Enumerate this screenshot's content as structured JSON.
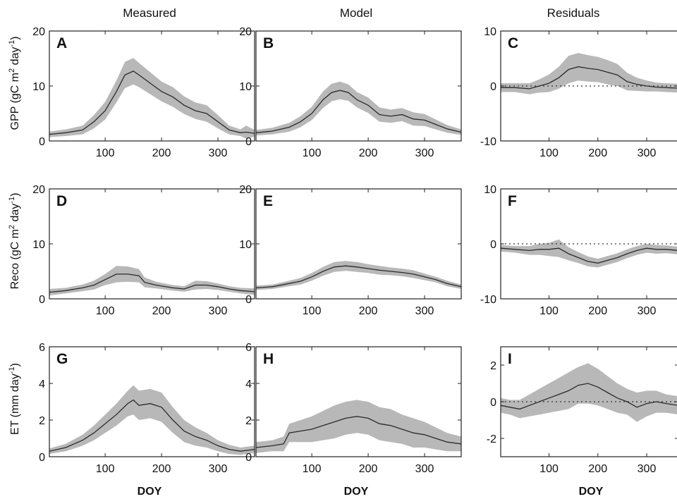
{
  "chart_data": {
    "type": "area",
    "col_titles": [
      "Measured",
      "Model",
      "Residuals"
    ],
    "row_ylabels": [
      {
        "base": "GPP (gC m",
        "sup1": "2",
        "mid": " day",
        "sup2": "-1",
        "end": ")"
      },
      {
        "base": "Reco (gC m",
        "sup1": "2",
        "mid": " day",
        "sup2": "-1",
        "end": ")"
      },
      {
        "base": "ET (mm day",
        "sup1": "",
        "mid": "",
        "sup2": "-1",
        "end": ")"
      }
    ],
    "xlabel": "DOY",
    "xlim": [
      1,
      365
    ],
    "xticks": [
      100,
      200,
      300
    ],
    "style": {
      "band_color": "#b8b8b8",
      "line_color": "#2a2a2a",
      "zero_line": "dotted"
    },
    "panels": [
      {
        "label": "A",
        "ylim": [
          0,
          20
        ],
        "yticks": [
          0,
          10,
          20
        ],
        "zero_line": false,
        "x": [
          1,
          30,
          60,
          80,
          100,
          120,
          135,
          150,
          160,
          180,
          200,
          220,
          240,
          260,
          280,
          300,
          320,
          340,
          350,
          365
        ],
        "y": [
          1.2,
          1.5,
          2.0,
          3.5,
          5.5,
          9.0,
          12.0,
          12.7,
          12.0,
          10.5,
          9.0,
          8.0,
          6.5,
          5.5,
          5.0,
          3.5,
          2.0,
          1.5,
          1.6,
          1.4
        ],
        "band": [
          0.5,
          0.6,
          0.8,
          1.2,
          1.6,
          2.0,
          2.4,
          2.4,
          2.2,
          2.0,
          1.8,
          1.8,
          1.6,
          1.5,
          1.5,
          1.2,
          0.8,
          0.6,
          1.2,
          0.6
        ]
      },
      {
        "label": "B",
        "ylim": [
          0,
          20
        ],
        "yticks": [
          0,
          10,
          20
        ],
        "zero_line": false,
        "x": [
          1,
          30,
          60,
          80,
          100,
          120,
          135,
          150,
          165,
          180,
          200,
          220,
          240,
          260,
          280,
          300,
          320,
          340,
          365
        ],
        "y": [
          1.5,
          1.8,
          2.5,
          3.5,
          5.0,
          7.5,
          8.8,
          9.2,
          8.8,
          7.5,
          6.5,
          4.8,
          4.5,
          4.8,
          4.0,
          3.8,
          3.0,
          2.2,
          1.6
        ],
        "band": [
          0.5,
          0.6,
          0.8,
          1.0,
          1.2,
          1.5,
          1.6,
          1.6,
          1.5,
          1.4,
          1.4,
          1.3,
          1.2,
          1.2,
          1.2,
          1.1,
          0.9,
          0.7,
          0.5
        ]
      },
      {
        "label": "C",
        "ylim": [
          -10,
          10
        ],
        "yticks": [
          -10,
          0,
          10
        ],
        "zero_line": true,
        "x": [
          1,
          30,
          60,
          80,
          100,
          120,
          140,
          160,
          180,
          200,
          220,
          240,
          260,
          280,
          300,
          320,
          340,
          365
        ],
        "y": [
          -0.3,
          -0.3,
          -0.5,
          0.0,
          0.5,
          1.5,
          3.0,
          3.5,
          3.2,
          3.0,
          2.5,
          2.0,
          0.8,
          0.3,
          0.0,
          -0.2,
          -0.3,
          -0.4
        ],
        "band": [
          0.8,
          0.8,
          1.0,
          1.2,
          1.6,
          2.0,
          2.5,
          2.5,
          2.4,
          2.3,
          2.2,
          2.0,
          1.6,
          1.2,
          1.0,
          0.8,
          0.8,
          0.8
        ]
      },
      {
        "label": "D",
        "ylim": [
          0,
          20
        ],
        "yticks": [
          0,
          10,
          20
        ],
        "zero_line": false,
        "x": [
          1,
          30,
          60,
          80,
          100,
          120,
          140,
          160,
          170,
          190,
          220,
          240,
          260,
          280,
          300,
          320,
          340,
          365
        ],
        "y": [
          1.2,
          1.5,
          2.0,
          2.5,
          3.5,
          4.5,
          4.5,
          4.2,
          3.0,
          2.5,
          2.0,
          1.8,
          2.5,
          2.5,
          2.2,
          1.8,
          1.5,
          1.3
        ],
        "band": [
          0.6,
          0.5,
          0.6,
          0.8,
          1.0,
          1.5,
          1.4,
          1.2,
          0.9,
          0.6,
          0.5,
          0.5,
          0.8,
          0.7,
          0.6,
          0.5,
          0.5,
          0.6
        ]
      },
      {
        "label": "E",
        "ylim": [
          0,
          20
        ],
        "yticks": [
          0,
          10,
          20
        ],
        "zero_line": false,
        "x": [
          1,
          30,
          60,
          80,
          100,
          120,
          140,
          160,
          180,
          200,
          220,
          240,
          260,
          280,
          300,
          320,
          340,
          365
        ],
        "y": [
          2.0,
          2.2,
          2.8,
          3.2,
          4.0,
          5.0,
          5.8,
          6.0,
          5.8,
          5.5,
          5.2,
          5.0,
          4.8,
          4.5,
          4.0,
          3.5,
          2.8,
          2.2
        ],
        "band": [
          0.4,
          0.4,
          0.5,
          0.6,
          0.7,
          0.8,
          0.9,
          0.9,
          0.9,
          0.8,
          0.8,
          0.7,
          0.7,
          0.7,
          0.6,
          0.5,
          0.5,
          0.4
        ]
      },
      {
        "label": "F",
        "ylim": [
          -10,
          10
        ],
        "yticks": [
          -10,
          0,
          10
        ],
        "zero_line": true,
        "x": [
          1,
          30,
          60,
          80,
          100,
          120,
          140,
          160,
          180,
          200,
          220,
          240,
          260,
          280,
          300,
          320,
          340,
          365
        ],
        "y": [
          -0.8,
          -1.0,
          -1.2,
          -1.0,
          -1.0,
          -0.8,
          -1.8,
          -2.5,
          -3.2,
          -3.5,
          -3.0,
          -2.5,
          -1.8,
          -1.2,
          -0.8,
          -1.0,
          -1.0,
          -1.2
        ],
        "band": [
          0.6,
          0.6,
          0.8,
          1.0,
          1.2,
          1.6,
          1.2,
          1.0,
          0.9,
          0.8,
          0.8,
          0.8,
          0.8,
          0.8,
          0.8,
          0.8,
          0.7,
          0.7
        ]
      },
      {
        "label": "G",
        "ylim": [
          0,
          6
        ],
        "yticks": [
          0,
          2,
          4,
          6
        ],
        "zero_line": false,
        "x": [
          1,
          30,
          60,
          80,
          100,
          120,
          140,
          150,
          160,
          180,
          200,
          220,
          240,
          260,
          280,
          300,
          320,
          340,
          365
        ],
        "y": [
          0.3,
          0.5,
          0.9,
          1.3,
          1.8,
          2.3,
          2.9,
          3.1,
          2.8,
          2.9,
          2.7,
          2.0,
          1.4,
          1.1,
          0.9,
          0.6,
          0.4,
          0.3,
          0.4
        ],
        "band": [
          0.15,
          0.2,
          0.3,
          0.4,
          0.5,
          0.6,
          0.7,
          0.8,
          0.8,
          0.8,
          0.8,
          0.7,
          0.6,
          0.5,
          0.4,
          0.3,
          0.25,
          0.2,
          0.2
        ]
      },
      {
        "label": "H",
        "ylim": [
          0,
          6
        ],
        "yticks": [
          0,
          2,
          4,
          6
        ],
        "zero_line": false,
        "x": [
          1,
          30,
          50,
          60,
          80,
          100,
          120,
          140,
          160,
          180,
          200,
          220,
          240,
          260,
          280,
          300,
          320,
          340,
          365
        ],
        "y": [
          0.5,
          0.6,
          0.7,
          1.3,
          1.4,
          1.5,
          1.7,
          1.9,
          2.1,
          2.2,
          2.1,
          1.8,
          1.7,
          1.5,
          1.3,
          1.2,
          1.0,
          0.8,
          0.7
        ],
        "band": [
          0.3,
          0.3,
          0.4,
          0.5,
          0.6,
          0.7,
          0.8,
          0.9,
          0.9,
          0.9,
          0.9,
          0.9,
          0.9,
          0.8,
          0.8,
          0.7,
          0.6,
          0.5,
          0.4
        ]
      },
      {
        "label": "I",
        "ylim": [
          -3,
          3
        ],
        "yticks": [
          -2,
          0,
          2
        ],
        "zero_line": true,
        "x": [
          1,
          20,
          40,
          60,
          80,
          100,
          120,
          140,
          160,
          180,
          200,
          220,
          240,
          260,
          280,
          300,
          320,
          340,
          365
        ],
        "y": [
          -0.2,
          -0.3,
          -0.4,
          -0.2,
          0.0,
          0.2,
          0.4,
          0.6,
          0.9,
          1.0,
          0.8,
          0.5,
          0.2,
          0.0,
          -0.3,
          -0.1,
          0.0,
          -0.1,
          -0.2
        ],
        "band": [
          0.4,
          0.4,
          0.5,
          0.6,
          0.7,
          0.8,
          0.9,
          1.0,
          1.0,
          1.1,
          1.0,
          0.9,
          0.8,
          0.7,
          0.8,
          0.7,
          0.6,
          0.5,
          0.5
        ]
      }
    ]
  }
}
